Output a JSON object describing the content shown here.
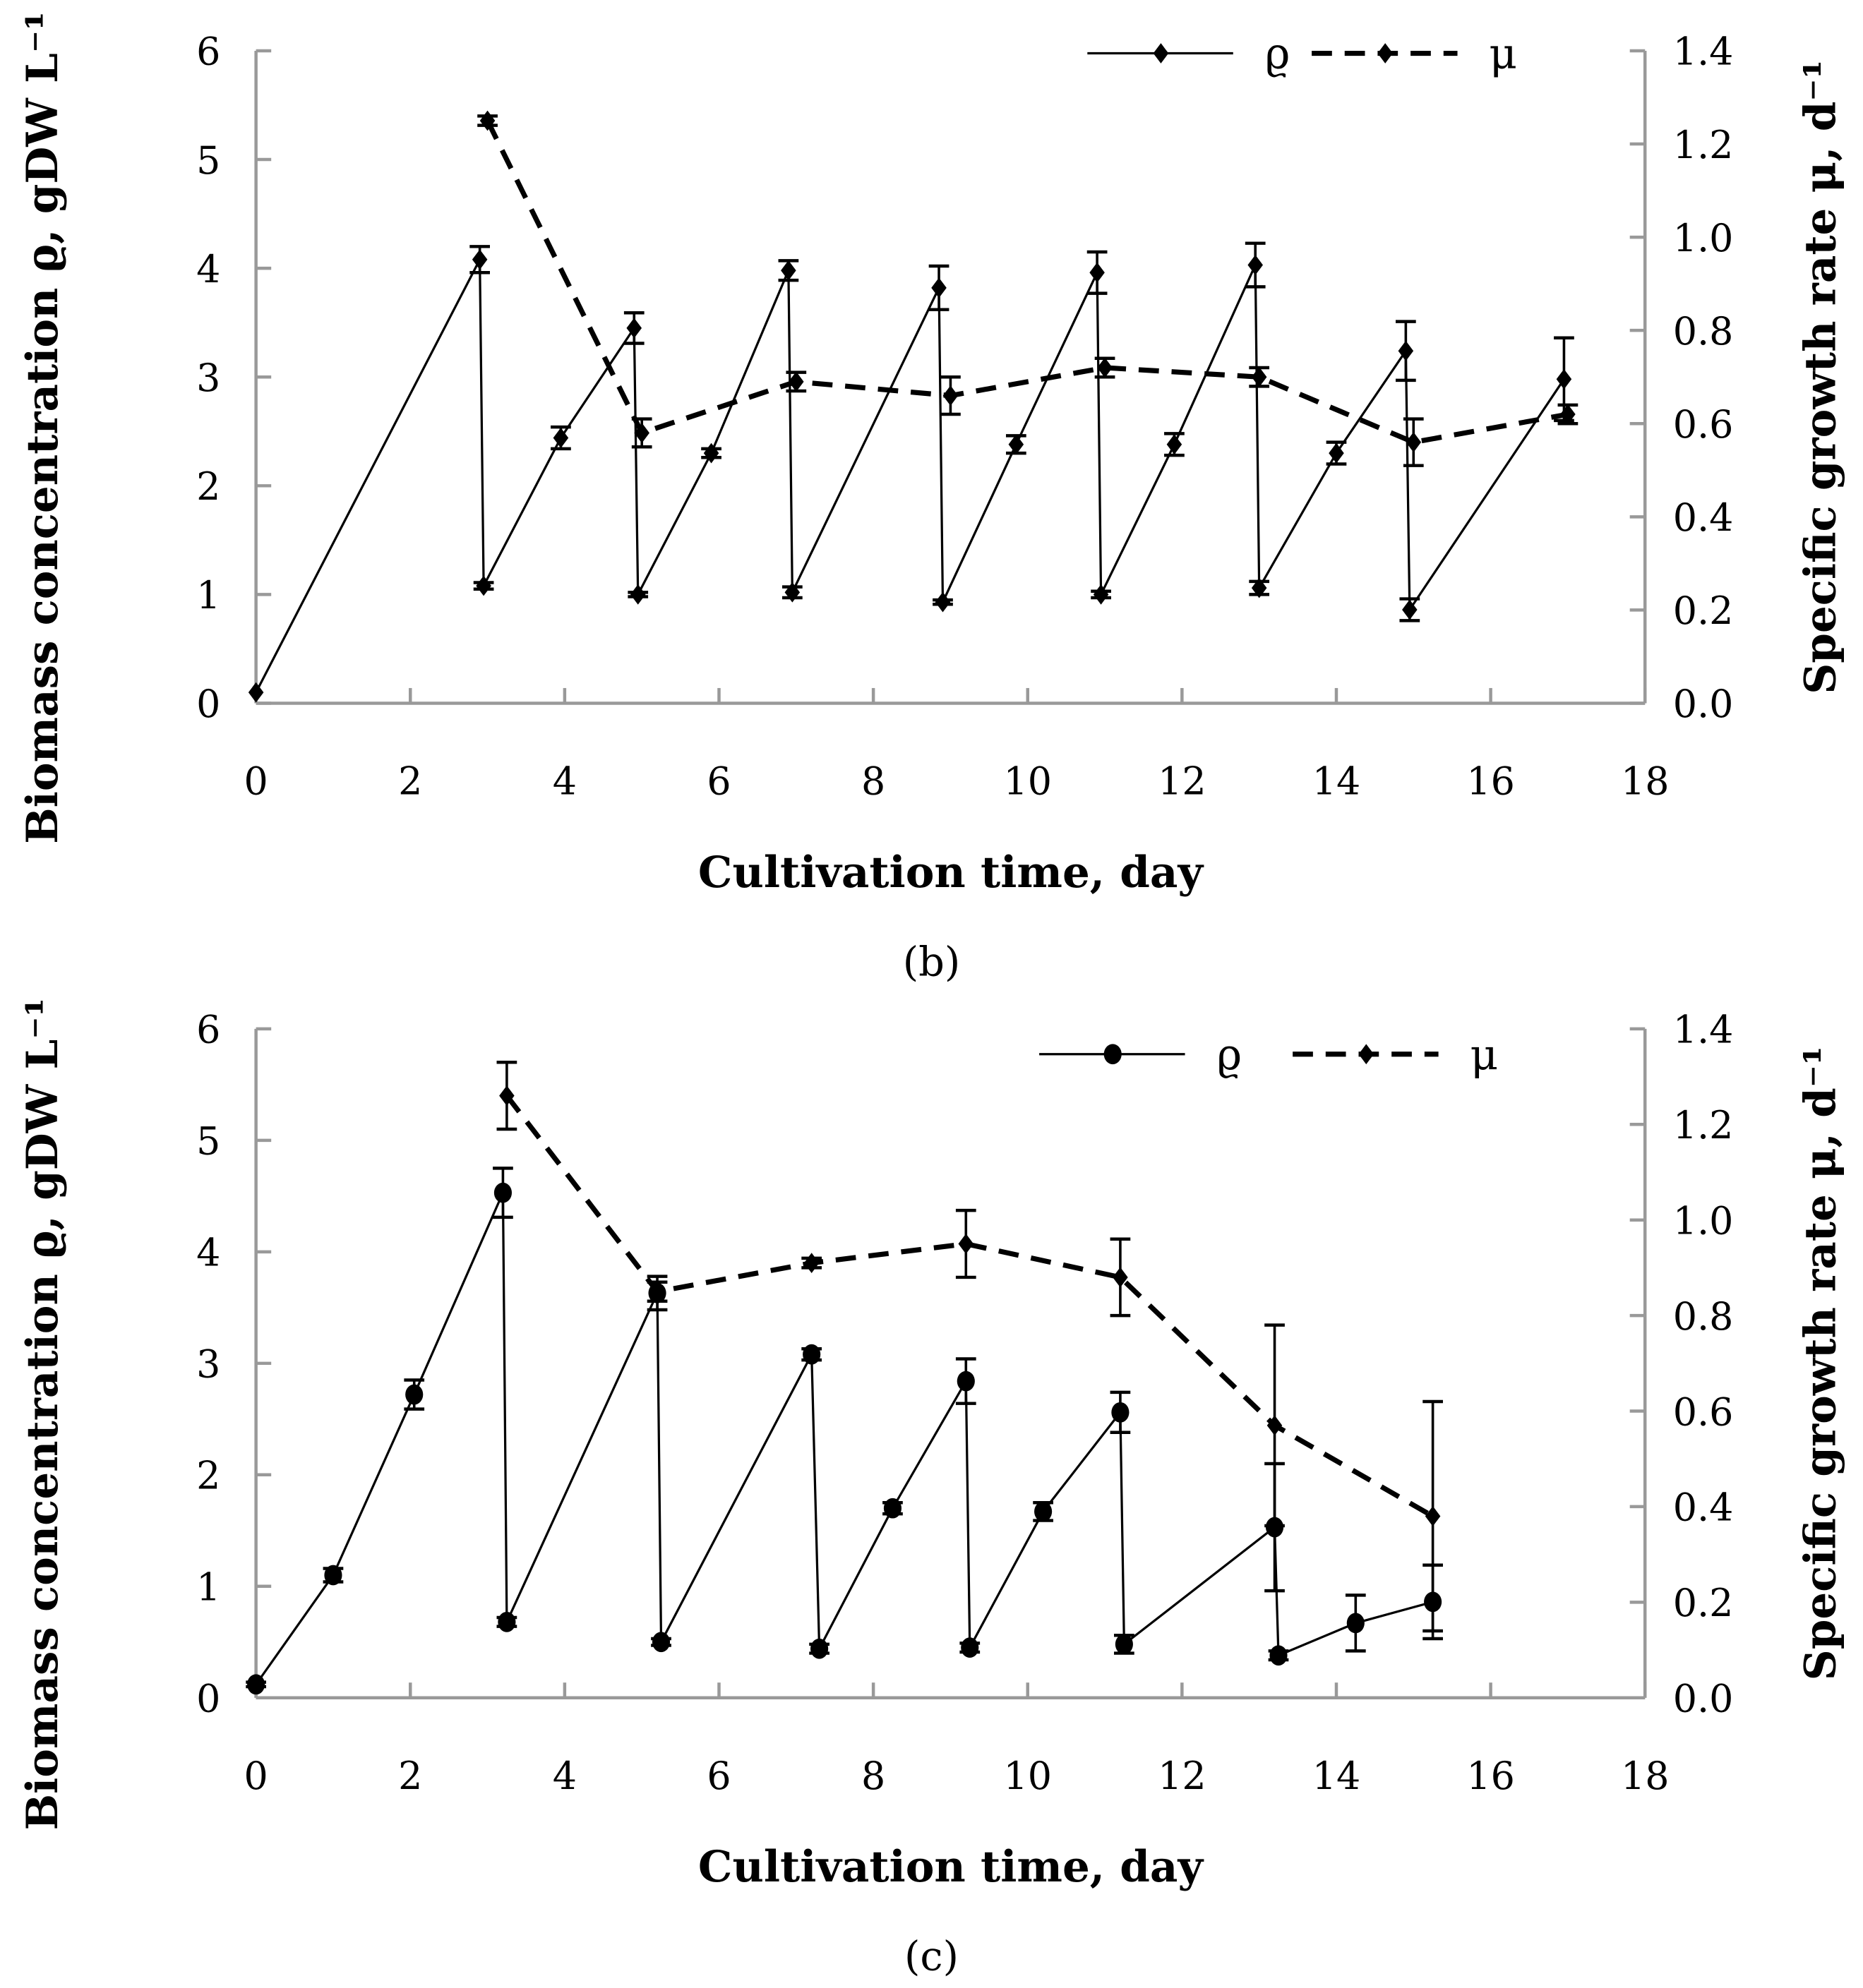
{
  "chart_data": [
    {
      "type": "line",
      "panel_label": "b",
      "xlabel": "Cultivation time, day",
      "ylabel": "Biomass concentration ϱ, gDW L⁻¹",
      "y2label": "Specific growth rate μ, d⁻¹",
      "xlim": [
        0,
        18
      ],
      "ylim": [
        0,
        6
      ],
      "y2lim": [
        0,
        1.4
      ],
      "xticks": [
        "0",
        "2",
        "4",
        "6",
        "8",
        "10",
        "12",
        "14",
        "16",
        "18"
      ],
      "yticks": [
        "0",
        "1",
        "2",
        "3",
        "4",
        "5",
        "6"
      ],
      "y2ticks": [
        "0.0",
        "0.2",
        "0.4",
        "0.6",
        "0.8",
        "1.0",
        "1.2",
        "1.4"
      ],
      "grid": false,
      "legend_position": "top-right",
      "series": [
        {
          "name": "ϱ",
          "axis": "left",
          "style": "solid",
          "marker": "diamond",
          "x": [
            0,
            2.9,
            2.95,
            3.95,
            4.9,
            4.95,
            5.9,
            6.9,
            6.95,
            8.85,
            8.9,
            9.85,
            10.9,
            10.95,
            11.9,
            12.95,
            13.0,
            14.0,
            14.9,
            14.95,
            16.95
          ],
          "y": [
            0.1,
            4.08,
            1.08,
            2.44,
            3.45,
            1.0,
            2.3,
            3.98,
            1.02,
            3.82,
            0.93,
            2.38,
            3.96,
            1.0,
            2.38,
            4.03,
            1.06,
            2.3,
            3.24,
            0.86,
            2.98
          ],
          "err": [
            0,
            0.12,
            0.03,
            0.1,
            0.14,
            0.02,
            0.04,
            0.09,
            0.05,
            0.2,
            0.02,
            0.08,
            0.19,
            0.03,
            0.1,
            0.2,
            0.06,
            0.1,
            0.27,
            0.1,
            0.38
          ]
        },
        {
          "name": "μ",
          "axis": "right",
          "style": "dashed",
          "marker": "diamond",
          "x": [
            3,
            5,
            7,
            9,
            11,
            13,
            15,
            17
          ],
          "y": [
            1.25,
            0.58,
            0.69,
            0.66,
            0.72,
            0.7,
            0.56,
            0.62
          ],
          "err": [
            0.01,
            0.03,
            0.02,
            0.04,
            0.02,
            0.02,
            0.05,
            0.02
          ]
        }
      ]
    },
    {
      "type": "line",
      "panel_label": "c",
      "xlabel": "Cultivation time, day",
      "ylabel": "Biomass concentration ϱ, gDW L⁻¹",
      "y2label": "Specific growth rate μ, d⁻¹",
      "xlim": [
        0,
        18
      ],
      "ylim": [
        0,
        6
      ],
      "y2lim": [
        0,
        1.4
      ],
      "xticks": [
        "0",
        "2",
        "4",
        "6",
        "8",
        "10",
        "12",
        "14",
        "16",
        "18"
      ],
      "yticks": [
        "0",
        "1",
        "2",
        "3",
        "4",
        "5",
        "6"
      ],
      "y2ticks": [
        "0.0",
        "0.2",
        "0.4",
        "0.6",
        "0.8",
        "1.0",
        "1.2",
        "1.4"
      ],
      "grid": false,
      "legend_position": "top-right",
      "series": [
        {
          "name": "ϱ",
          "axis": "left",
          "style": "solid",
          "marker": "circle",
          "x": [
            0,
            1,
            2.05,
            3.2,
            3.25,
            5.2,
            5.25,
            7.2,
            7.3,
            8.25,
            9.2,
            9.25,
            10.2,
            11.2,
            11.25,
            13.2,
            13.25,
            14.25,
            15.25
          ],
          "y": [
            0.12,
            1.1,
            2.72,
            4.53,
            0.68,
            3.63,
            0.5,
            3.08,
            0.44,
            1.7,
            2.84,
            0.45,
            1.67,
            2.56,
            0.48,
            1.53,
            0.38,
            0.67,
            0.86
          ],
          "err": [
            0.02,
            0.06,
            0.13,
            0.22,
            0.04,
            0.15,
            0.03,
            0.05,
            0.04,
            0.05,
            0.2,
            0.04,
            0.08,
            0.18,
            0.08,
            0.57,
            0.04,
            0.25,
            0.33
          ]
        },
        {
          "name": "μ",
          "axis": "right",
          "style": "dashed",
          "marker": "diamond",
          "x": [
            3.25,
            5.2,
            7.2,
            9.2,
            11.2,
            13.2,
            15.25
          ],
          "y": [
            1.26,
            0.85,
            0.91,
            0.95,
            0.88,
            0.57,
            0.38
          ],
          "err": [
            0.07,
            0.02,
            0.01,
            0.07,
            0.08,
            0.21,
            0.24
          ]
        }
      ]
    }
  ]
}
